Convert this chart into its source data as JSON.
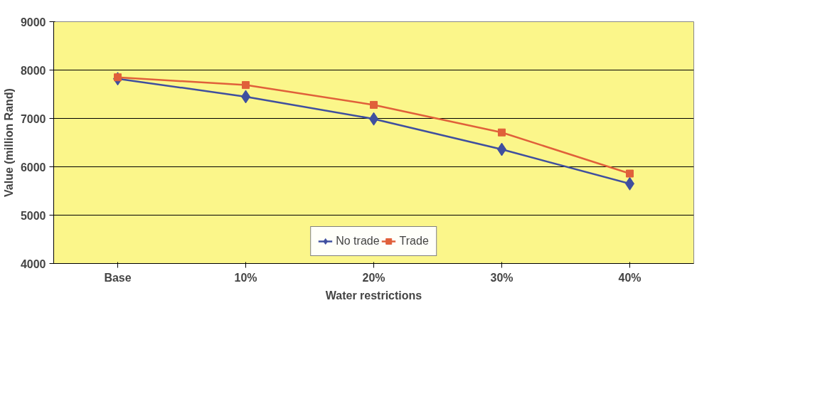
{
  "chart_data": {
    "type": "line",
    "xlabel": "Water restrictions",
    "ylabel": "Value (million Rand)",
    "categories": [
      "Base",
      "10%",
      "20%",
      "30%",
      "40%"
    ],
    "series": [
      {
        "name": "No trade",
        "color": "#3f4f9f",
        "marker": "diamond",
        "values": [
          7820,
          7450,
          6990,
          6360,
          5650
        ]
      },
      {
        "name": "Trade",
        "color": "#e0603a",
        "marker": "square",
        "values": [
          7850,
          7690,
          7280,
          6710,
          5860
        ]
      }
    ],
    "ylim": [
      4000,
      9000
    ],
    "yticks": [
      4000,
      5000,
      6000,
      7000,
      8000,
      9000
    ],
    "grid": "y",
    "legend": "bottom",
    "line_style": "solid"
  }
}
